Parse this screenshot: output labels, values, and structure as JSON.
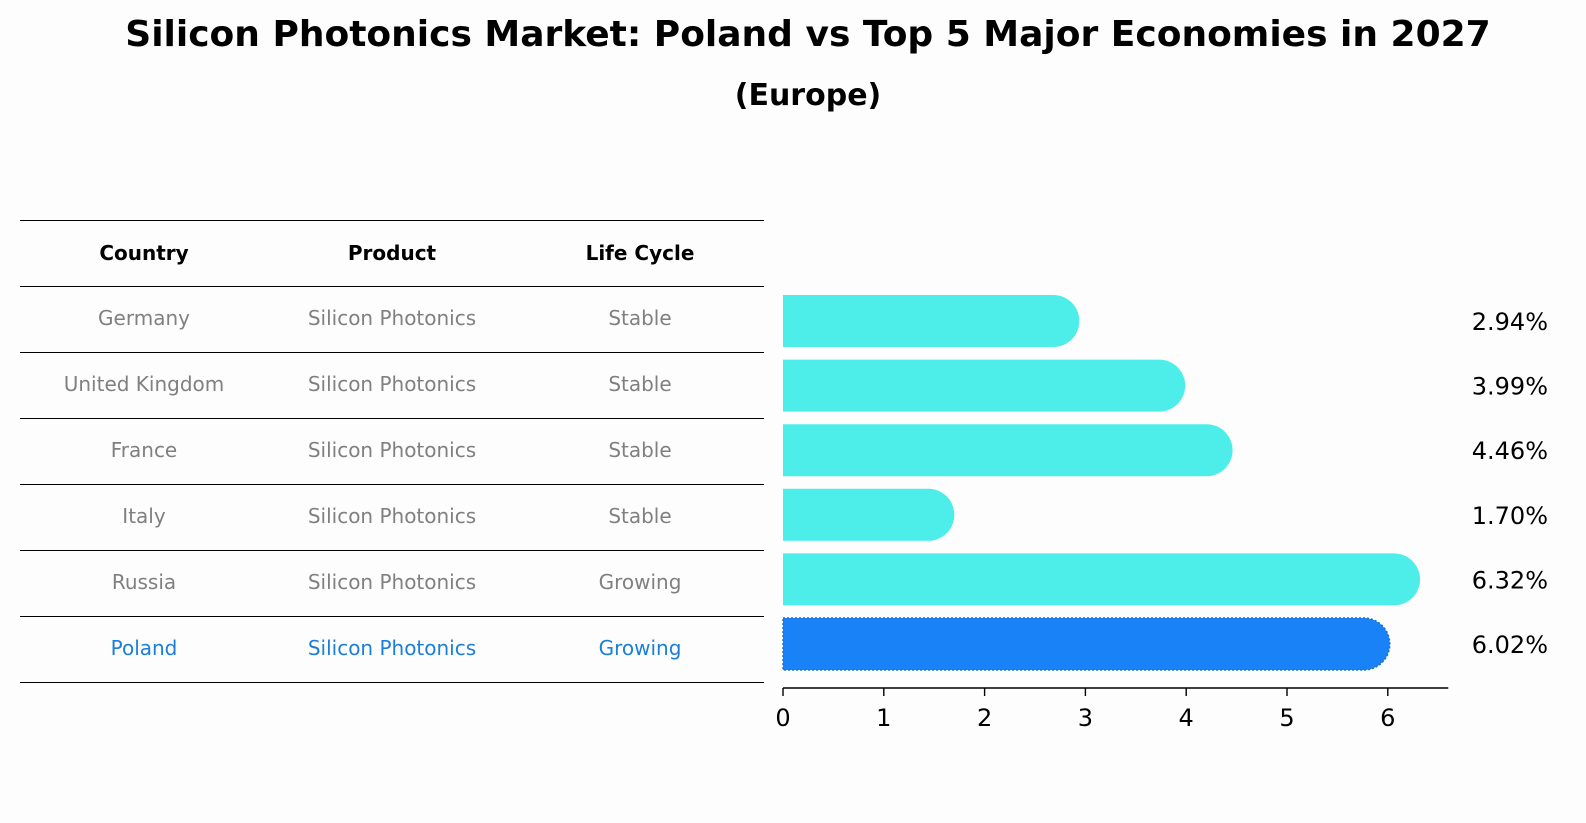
{
  "title": "Silicon Photonics Market: Poland vs Top 5 Major Economies in 2027",
  "subtitle": "(Europe)",
  "table": {
    "headers": [
      "Country",
      "Product",
      "Life Cycle"
    ],
    "rows": [
      {
        "country": "Germany",
        "product": "Silicon Photonics",
        "life_cycle": "Stable",
        "highlight": false
      },
      {
        "country": "United Kingdom",
        "product": "Silicon Photonics",
        "life_cycle": "Stable",
        "highlight": false
      },
      {
        "country": "France",
        "product": "Silicon Photonics",
        "life_cycle": "Stable",
        "highlight": false
      },
      {
        "country": "Italy",
        "product": "Silicon Photonics",
        "life_cycle": "Stable",
        "highlight": false
      },
      {
        "country": "Russia",
        "product": "Silicon Photonics",
        "life_cycle": "Growing",
        "highlight": false
      },
      {
        "country": "Poland",
        "product": "Silicon Photonics",
        "life_cycle": "Growing",
        "highlight": true
      }
    ]
  },
  "chart_data": {
    "type": "bar",
    "orientation": "horizontal",
    "categories": [
      "Germany",
      "United Kingdom",
      "France",
      "Italy",
      "Russia",
      "Poland"
    ],
    "values": [
      2.94,
      3.99,
      4.46,
      1.7,
      6.32,
      6.02
    ],
    "value_labels": [
      "2.94%",
      "3.99%",
      "4.46%",
      "1.70%",
      "6.32%",
      "6.02%"
    ],
    "xticks": [
      0,
      1,
      2,
      3,
      4,
      5,
      6
    ],
    "xlim": [
      0,
      6.6
    ],
    "colors": {
      "default": "#4deee9",
      "highlight": "#1a82f7"
    },
    "highlight_index": 5,
    "grid": false
  }
}
